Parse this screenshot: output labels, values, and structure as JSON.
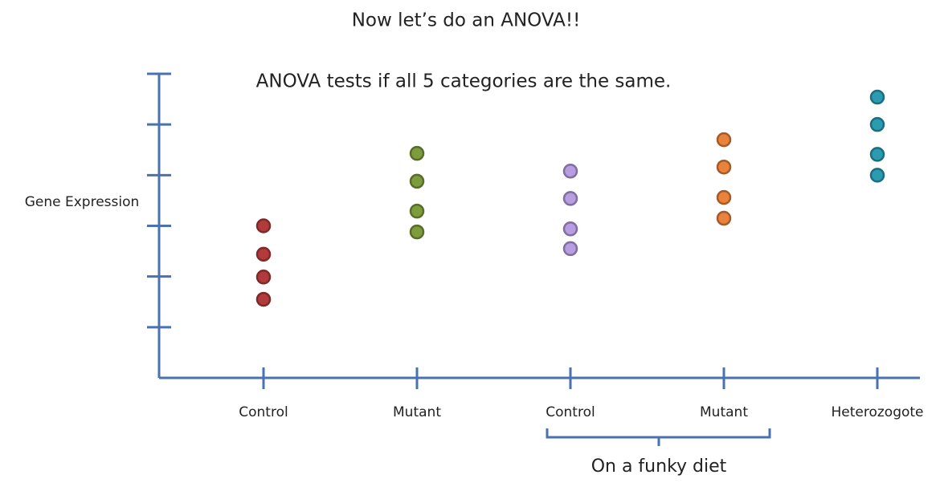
{
  "chart_data": {
    "type": "strip",
    "title": "Now let’s do an ANOVA!!",
    "subtitle": "ANOVA tests if all 5 categories are the same.",
    "y_label": "Gene Expression",
    "annotation": "On a funky diet",
    "categories": [
      "Control",
      "Mutant",
      "Control",
      "Mutant",
      "Heterozogote"
    ],
    "colors": [
      "#b23a3a",
      "#7d9c3c",
      "#b89de2",
      "#ea823c",
      "#2b9bb1"
    ],
    "values": [
      [
        3.0,
        2.44,
        1.99,
        1.55
      ],
      [
        4.43,
        3.88,
        3.29,
        2.88
      ],
      [
        4.08,
        3.54,
        2.94,
        2.55
      ],
      [
        4.7,
        4.16,
        3.56,
        3.15
      ],
      [
        5.54,
        5.0,
        4.41,
        4.0
      ]
    ],
    "ylim": [
      0,
      6
    ],
    "yticks": [
      1,
      2,
      3,
      4,
      5,
      6
    ]
  }
}
